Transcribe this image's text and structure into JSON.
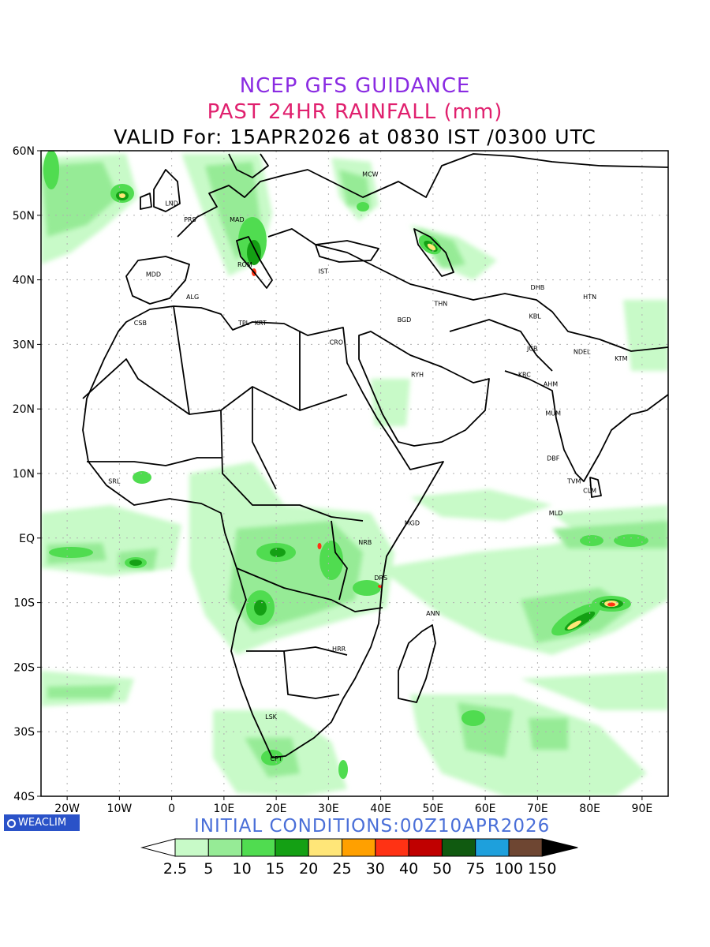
{
  "header": {
    "title": "NCEP GFS GUIDANCE",
    "subtitle": "PAST 24HR RAINFALL (mm)",
    "valid": "VALID For: 15APR2026 at 0830 IST /0300 UTC"
  },
  "footer": {
    "initial_conditions": "INITIAL CONDITIONS:00Z10APR2026",
    "badge_text": "WEACLIM"
  },
  "map": {
    "lon_range": [
      -25,
      95
    ],
    "lat_range": [
      -40,
      60
    ],
    "y_ticks": [
      "60N",
      "50N",
      "40N",
      "30N",
      "20N",
      "10N",
      "EQ",
      "10S",
      "20S",
      "30S",
      "40S"
    ],
    "x_ticks": [
      "20W",
      "10W",
      "0",
      "10E",
      "20E",
      "30E",
      "40E",
      "50E",
      "60E",
      "70E",
      "80E",
      "90E"
    ],
    "stations": [
      {
        "code": "LND",
        "lon": 0,
        "lat": 51.5
      },
      {
        "code": "PRS",
        "lon": 3.5,
        "lat": 49
      },
      {
        "code": "MAD",
        "lon": 12.5,
        "lat": 49
      },
      {
        "code": "MDD",
        "lon": -3.5,
        "lat": 40.5
      },
      {
        "code": "ROM",
        "lon": 14,
        "lat": 42
      },
      {
        "code": "IST",
        "lon": 29,
        "lat": 41
      },
      {
        "code": "ALG",
        "lon": 4,
        "lat": 37
      },
      {
        "code": "CSB",
        "lon": -6,
        "lat": 33
      },
      {
        "code": "TPL",
        "lon": 13.8,
        "lat": 33
      },
      {
        "code": "KRT",
        "lon": 17,
        "lat": 33
      },
      {
        "code": "CRO",
        "lon": 31.5,
        "lat": 30
      },
      {
        "code": "BGD",
        "lon": 44.5,
        "lat": 33.5
      },
      {
        "code": "THN",
        "lon": 51.5,
        "lat": 36
      },
      {
        "code": "MCW",
        "lon": 38,
        "lat": 56
      },
      {
        "code": "RYH",
        "lon": 47,
        "lat": 25
      },
      {
        "code": "DHB",
        "lon": 70,
        "lat": 38.5
      },
      {
        "code": "HTN",
        "lon": 80,
        "lat": 37
      },
      {
        "code": "KBL",
        "lon": 69.5,
        "lat": 34
      },
      {
        "code": "JCB",
        "lon": 69,
        "lat": 29
      },
      {
        "code": "NDEL",
        "lon": 78.5,
        "lat": 28.5
      },
      {
        "code": "KRC",
        "lon": 67.5,
        "lat": 25
      },
      {
        "code": "AHM",
        "lon": 72.5,
        "lat": 23.5
      },
      {
        "code": "KTM",
        "lon": 86,
        "lat": 27.5
      },
      {
        "code": "MUM",
        "lon": 73,
        "lat": 19
      },
      {
        "code": "DBF",
        "lon": 73,
        "lat": 12
      },
      {
        "code": "TVM",
        "lon": 77,
        "lat": 8.5
      },
      {
        "code": "CLM",
        "lon": 80,
        "lat": 7
      },
      {
        "code": "MLD",
        "lon": 73.5,
        "lat": 3.5
      },
      {
        "code": "SRL",
        "lon": -11,
        "lat": 8.5
      },
      {
        "code": "MGD",
        "lon": 46,
        "lat": 2
      },
      {
        "code": "NRB",
        "lon": 37,
        "lat": -1
      },
      {
        "code": "DRS",
        "lon": 40,
        "lat": -6.5
      },
      {
        "code": "ANN",
        "lon": 50,
        "lat": -12
      },
      {
        "code": "HRR",
        "lon": 32,
        "lat": -17.5
      },
      {
        "code": "LSK",
        "lon": 19,
        "lat": -28
      },
      {
        "code": "CPT",
        "lon": 20,
        "lat": -34.5
      }
    ]
  },
  "colorbar": {
    "labels": [
      "2.5",
      "5",
      "10",
      "15",
      "20",
      "25",
      "30",
      "40",
      "50",
      "75",
      "100",
      "150"
    ],
    "colors": [
      "#c8fac8",
      "#96eb96",
      "#50dc50",
      "#14a014",
      "#ffe678",
      "#ffa000",
      "#ff3214",
      "#c00000",
      "#105a10",
      "#1ea0dc",
      "#6e4632"
    ]
  }
}
